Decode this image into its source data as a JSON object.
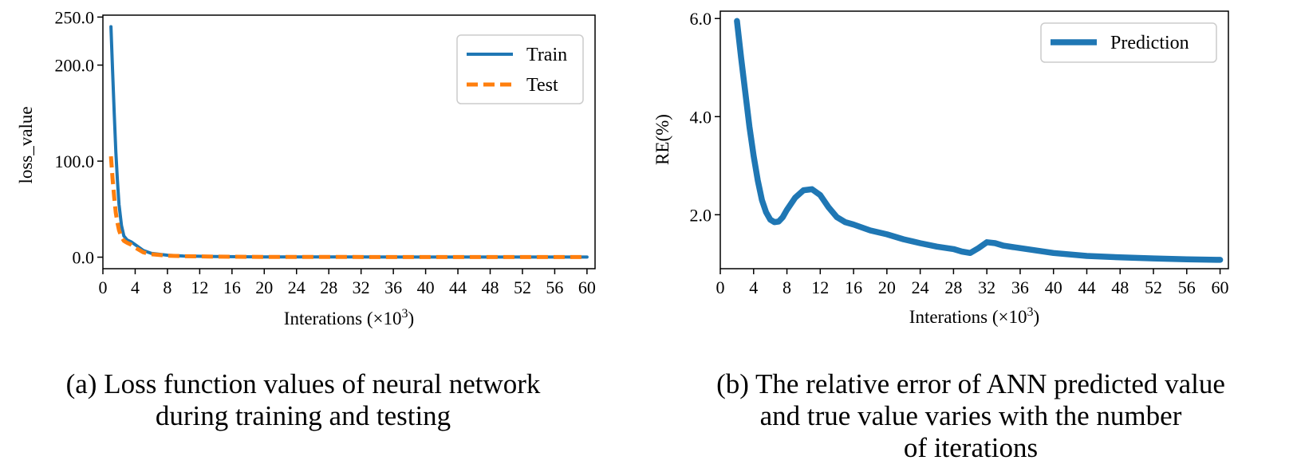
{
  "chart_data": [
    {
      "type": "line",
      "id": "a",
      "xlabel": "Interations",
      "xlabel_suffix": "(×10",
      "xlabel_exp": "3",
      "xlabel_close": ")",
      "ylabel": "loss_value",
      "xlim": [
        0,
        61
      ],
      "ylim": [
        -12,
        252
      ],
      "xticks": [
        0,
        4,
        8,
        12,
        16,
        20,
        24,
        28,
        32,
        36,
        40,
        44,
        48,
        52,
        56,
        60
      ],
      "yticks": [
        0,
        100,
        200,
        250
      ],
      "ytick_labels": [
        "0.0",
        "100.0",
        "200.0",
        "250.0"
      ],
      "legend": {
        "position": "top-right",
        "entries": [
          "Train",
          "Test"
        ]
      },
      "series": [
        {
          "name": "Train",
          "color": "#1f77b4",
          "style": "solid",
          "x": [
            1.0,
            1.2,
            1.4,
            1.6,
            1.8,
            2.0,
            2.3,
            2.6,
            3.0,
            3.5,
            4.0,
            5.0,
            6.0,
            8.0,
            10,
            14,
            20,
            30,
            40,
            50,
            60
          ],
          "y": [
            240,
            195,
            150,
            110,
            80,
            55,
            33,
            22,
            18,
            16,
            13,
            7,
            4,
            2,
            1.2,
            0.6,
            0.3,
            0.2,
            0.15,
            0.1,
            0.1
          ]
        },
        {
          "name": "Test",
          "color": "#ff7f0e",
          "style": "dashed",
          "x": [
            1.0,
            1.2,
            1.4,
            1.6,
            1.8,
            2.0,
            2.3,
            2.6,
            3.0,
            3.5,
            4.0,
            5.0,
            6.0,
            8.0,
            10,
            14,
            20,
            30,
            40,
            50,
            60
          ],
          "y": [
            105,
            82,
            62,
            46,
            36,
            28,
            21,
            17,
            15,
            13,
            10,
            5,
            3,
            1.5,
            1,
            0.5,
            0.3,
            0.2,
            0.1,
            0.1,
            0.1
          ]
        }
      ],
      "caption_label": "(a)",
      "caption_lines": [
        "Loss function values of neural network",
        "during training and testing"
      ]
    },
    {
      "type": "line",
      "id": "b",
      "xlabel": "Interations",
      "xlabel_suffix": "(×10",
      "xlabel_exp": "3",
      "xlabel_close": ")",
      "ylabel": "RE(%)",
      "xlim": [
        0,
        61
      ],
      "ylim": [
        0.9,
        6.15
      ],
      "xticks": [
        0,
        4,
        8,
        12,
        16,
        20,
        24,
        28,
        32,
        36,
        40,
        44,
        48,
        52,
        56,
        60
      ],
      "yticks": [
        2.0,
        4.0,
        6.0
      ],
      "ytick_labels": [
        "2.0",
        "4.0",
        "6.0"
      ],
      "legend": {
        "position": "top-right",
        "entries": [
          "Prediction"
        ]
      },
      "series": [
        {
          "name": "Prediction",
          "color": "#1f77b4",
          "style": "solid",
          "x": [
            2.0,
            2.5,
            3.0,
            3.5,
            4.0,
            4.5,
            5.0,
            5.5,
            6.0,
            6.5,
            7.0,
            7.5,
            8.0,
            9.0,
            10.0,
            11.0,
            12.0,
            13.0,
            14.0,
            15.0,
            16.0,
            18.0,
            20.0,
            22.0,
            24.0,
            26.0,
            28.0,
            29.0,
            30.0,
            31.0,
            32.0,
            33.0,
            34.0,
            36.0,
            40.0,
            44.0,
            48.0,
            52.0,
            56.0,
            60.0
          ],
          "y": [
            5.95,
            5.2,
            4.5,
            3.8,
            3.2,
            2.7,
            2.3,
            2.05,
            1.9,
            1.85,
            1.86,
            1.95,
            2.1,
            2.35,
            2.5,
            2.52,
            2.4,
            2.15,
            1.95,
            1.85,
            1.8,
            1.68,
            1.6,
            1.5,
            1.42,
            1.35,
            1.3,
            1.25,
            1.22,
            1.32,
            1.44,
            1.42,
            1.37,
            1.32,
            1.22,
            1.16,
            1.13,
            1.11,
            1.09,
            1.08
          ]
        }
      ],
      "caption_label": "(b)",
      "caption_lines": [
        "The relative error of ANN predicted value",
        "and true value varies with the number",
        "of iterations"
      ]
    }
  ]
}
